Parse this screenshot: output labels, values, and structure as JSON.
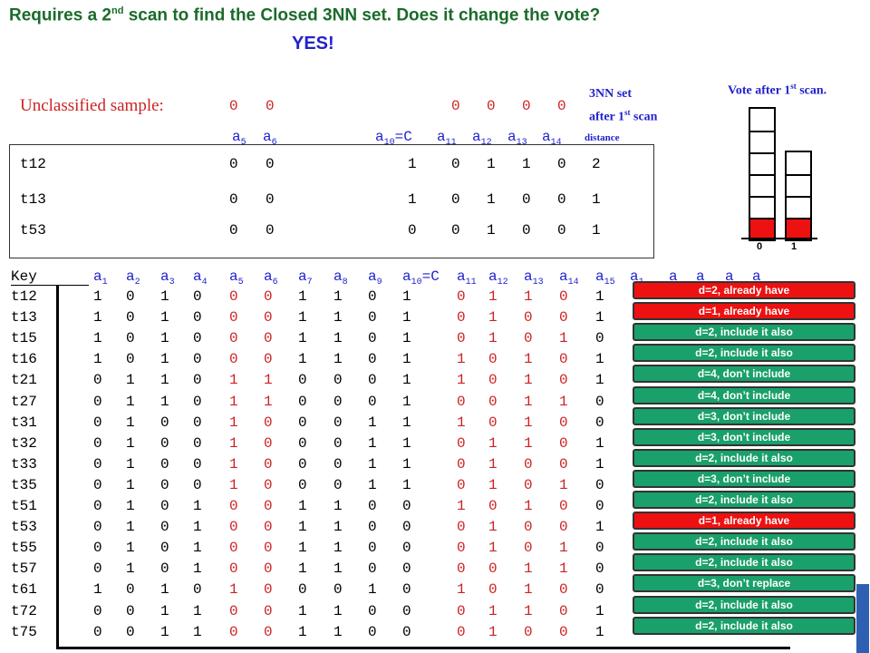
{
  "title": {
    "pre": "Requires a 2",
    "sup": "nd",
    "post": " scan to find the Closed 3NN set.   Does it change the vote?",
    "answer": "YES!"
  },
  "unclassified": {
    "label": "Unclassified sample:",
    "values": [
      "0",
      "0",
      "0",
      "0",
      "0",
      "0"
    ]
  },
  "nn_header": {
    "a5": "a",
    "a5s": "5",
    "a6": "a",
    "a6s": "6",
    "a10": "a",
    "a10s": "10",
    "a10eq": "=C",
    "a11": "a",
    "a11s": "11",
    "a12": "a",
    "a12s": "12",
    "a13": "a",
    "a13s": "13",
    "a14": "a",
    "a14s": "14",
    "distance": "distance"
  },
  "nn_rows": [
    {
      "key": "t12",
      "v": [
        "0",
        "0",
        "1",
        "0",
        "1",
        "1",
        "0",
        "2"
      ]
    },
    {
      "key": "t13",
      "v": [
        "0",
        "0",
        "1",
        "0",
        "1",
        "0",
        "0",
        "1"
      ]
    },
    {
      "key": "t53",
      "v": [
        "0",
        "0",
        "0",
        "0",
        "1",
        "0",
        "0",
        "1"
      ]
    }
  ],
  "label_3nn": {
    "line1": "3NN set",
    "line2_pre": "after 1",
    "line2_sup": "st",
    "line2_post": " scan"
  },
  "vote": {
    "title_pre": "Vote after 1",
    "title_sup": "st",
    "title_post": " scan.",
    "label_0": "0",
    "label_1": "1",
    "col0": {
      "total": 6,
      "red": 1
    },
    "col1": {
      "total": 4,
      "red": 1
    },
    "accent_red": "#ee1111"
  },
  "main_header": {
    "key": "Key",
    "cols": [
      {
        "a": "a",
        "s": "1"
      },
      {
        "a": "a",
        "s": "2"
      },
      {
        "a": "a",
        "s": "3"
      },
      {
        "a": "a",
        "s": "4"
      },
      {
        "a": "a",
        "s": "5"
      },
      {
        "a": "a",
        "s": "6"
      },
      {
        "a": "a",
        "s": "7"
      },
      {
        "a": "a",
        "s": "8"
      },
      {
        "a": "a",
        "s": "9"
      },
      {
        "a": "a",
        "s": "10",
        "eq": "=C"
      },
      {
        "a": "a",
        "s": "11"
      },
      {
        "a": "a",
        "s": "12"
      },
      {
        "a": "a",
        "s": "13"
      },
      {
        "a": "a",
        "s": "14"
      },
      {
        "a": "a",
        "s": "15"
      },
      {
        "a": "a",
        "s": "1"
      },
      {
        "a": "a",
        "s": ""
      },
      {
        "a": "a",
        "s": ""
      },
      {
        "a": "a",
        "s": ""
      },
      {
        "a": "a",
        "s": ""
      }
    ]
  },
  "main_rows": [
    {
      "key": "t12",
      "v": [
        "1",
        "0",
        "1",
        "0",
        "0",
        "0",
        "1",
        "1",
        "0",
        "1",
        "0",
        "1",
        "1",
        "0",
        "1"
      ]
    },
    {
      "key": "t13",
      "v": [
        "1",
        "0",
        "1",
        "0",
        "0",
        "0",
        "1",
        "1",
        "0",
        "1",
        "0",
        "1",
        "0",
        "0",
        "1"
      ]
    },
    {
      "key": "t15",
      "v": [
        "1",
        "0",
        "1",
        "0",
        "0",
        "0",
        "1",
        "1",
        "0",
        "1",
        "0",
        "1",
        "0",
        "1",
        "0"
      ]
    },
    {
      "key": "t16",
      "v": [
        "1",
        "0",
        "1",
        "0",
        "0",
        "0",
        "1",
        "1",
        "0",
        "1",
        "1",
        "0",
        "1",
        "0",
        "1"
      ]
    },
    {
      "key": "t21",
      "v": [
        "0",
        "1",
        "1",
        "0",
        "1",
        "1",
        "0",
        "0",
        "0",
        "1",
        "1",
        "0",
        "1",
        "0",
        "1"
      ]
    },
    {
      "key": "t27",
      "v": [
        "0",
        "1",
        "1",
        "0",
        "1",
        "1",
        "0",
        "0",
        "0",
        "1",
        "0",
        "0",
        "1",
        "1",
        "0"
      ]
    },
    {
      "key": "t31",
      "v": [
        "0",
        "1",
        "0",
        "0",
        "1",
        "0",
        "0",
        "0",
        "1",
        "1",
        "1",
        "0",
        "1",
        "0",
        "0"
      ]
    },
    {
      "key": "t32",
      "v": [
        "0",
        "1",
        "0",
        "0",
        "1",
        "0",
        "0",
        "0",
        "1",
        "1",
        "0",
        "1",
        "1",
        "0",
        "1"
      ]
    },
    {
      "key": "t33",
      "v": [
        "0",
        "1",
        "0",
        "0",
        "1",
        "0",
        "0",
        "0",
        "1",
        "1",
        "0",
        "1",
        "0",
        "0",
        "1"
      ]
    },
    {
      "key": "t35",
      "v": [
        "0",
        "1",
        "0",
        "0",
        "1",
        "0",
        "0",
        "0",
        "1",
        "1",
        "0",
        "1",
        "0",
        "1",
        "0"
      ]
    },
    {
      "key": "t51",
      "v": [
        "0",
        "1",
        "0",
        "1",
        "0",
        "0",
        "1",
        "1",
        "0",
        "0",
        "1",
        "0",
        "1",
        "0",
        "0"
      ]
    },
    {
      "key": "t53",
      "v": [
        "0",
        "1",
        "0",
        "1",
        "0",
        "0",
        "1",
        "1",
        "0",
        "0",
        "0",
        "1",
        "0",
        "0",
        "1"
      ]
    },
    {
      "key": "t55",
      "v": [
        "0",
        "1",
        "0",
        "1",
        "0",
        "0",
        "1",
        "1",
        "0",
        "0",
        "0",
        "1",
        "0",
        "1",
        "0"
      ]
    },
    {
      "key": "t57",
      "v": [
        "0",
        "1",
        "0",
        "1",
        "0",
        "0",
        "1",
        "1",
        "0",
        "0",
        "0",
        "0",
        "1",
        "1",
        "0"
      ]
    },
    {
      "key": "t61",
      "v": [
        "1",
        "0",
        "1",
        "0",
        "1",
        "0",
        "0",
        "0",
        "1",
        "0",
        "1",
        "0",
        "1",
        "0",
        "0"
      ]
    },
    {
      "key": "t72",
      "v": [
        "0",
        "0",
        "1",
        "1",
        "0",
        "0",
        "1",
        "1",
        "0",
        "0",
        "0",
        "1",
        "1",
        "0",
        "1"
      ]
    },
    {
      "key": "t75",
      "v": [
        "0",
        "0",
        "1",
        "1",
        "0",
        "0",
        "1",
        "1",
        "0",
        "0",
        "0",
        "1",
        "0",
        "0",
        "1"
      ]
    }
  ],
  "badges": [
    {
      "text": "d=2,   already have",
      "color": "red"
    },
    {
      "text": "d=1,   already have",
      "color": "red"
    },
    {
      "text": "d=2,   include it also",
      "color": "green"
    },
    {
      "text": "d=2,   include it also",
      "color": "green"
    },
    {
      "text": "d=4,   don’t include",
      "color": "green"
    },
    {
      "text": "d=4,   don’t include",
      "color": "green"
    },
    {
      "text": "d=3,   don’t include",
      "color": "green"
    },
    {
      "text": "d=3,   don’t include",
      "color": "green"
    },
    {
      "text": "d=2,   include it also",
      "color": "green"
    },
    {
      "text": "d=3,   don’t include",
      "color": "green"
    },
    {
      "text": "d=2,   include it also",
      "color": "green"
    },
    {
      "text": "d=1,   already have",
      "color": "red"
    },
    {
      "text": "d=2,   include it also",
      "color": "green"
    },
    {
      "text": "d=2,   include it also",
      "color": "green"
    },
    {
      "text": "d=3,   don’t replace",
      "color": "green"
    },
    {
      "text": "d=2,   include it also",
      "color": "green"
    },
    {
      "text": "d=2,   include it also",
      "color": "green"
    }
  ]
}
